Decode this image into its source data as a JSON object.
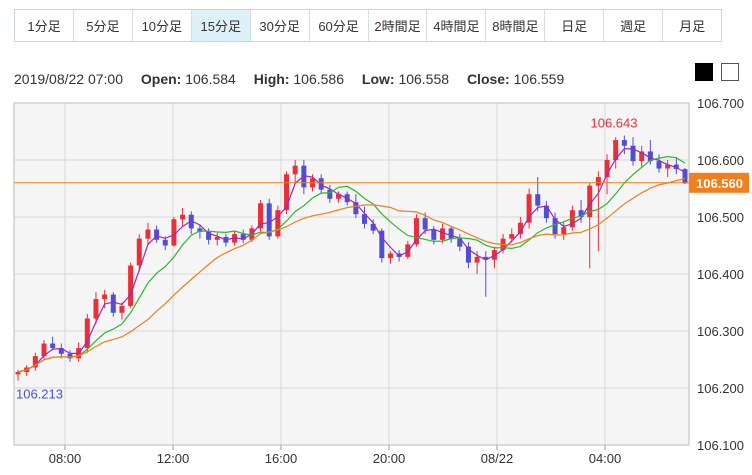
{
  "timeframes": [
    {
      "label": "1分足"
    },
    {
      "label": "5分足"
    },
    {
      "label": "10分足"
    },
    {
      "label": "15分足",
      "active": true
    },
    {
      "label": "30分足"
    },
    {
      "label": "60分足"
    },
    {
      "label": "2時間足"
    },
    {
      "label": "4時間足"
    },
    {
      "label": "8時間足"
    },
    {
      "label": "日足"
    },
    {
      "label": "週足"
    },
    {
      "label": "月足"
    }
  ],
  "ohlc": {
    "datetime": "2019/08/22 07:00",
    "open_label": "Open:",
    "open": "106.584",
    "high_label": "High:",
    "high": "106.586",
    "low_label": "Low:",
    "low": "106.558",
    "close_label": "Close:",
    "close": "106.559"
  },
  "colors": {
    "up": "#e8303a",
    "down": "#4d4fd6",
    "ma_fast": "#9b27c7",
    "ma_mid": "#2eb82e",
    "ma_slow": "#f07f1c",
    "current": "#f07f1c",
    "grid": "#d8d8d8",
    "bg": "#f5f5f5"
  },
  "chart_data": {
    "type": "candlestick",
    "x_ticks": [
      "08:00",
      "12:00",
      "16:00",
      "20:00",
      "08/22",
      "04:00"
    ],
    "y_ticks": [
      "106.700",
      "106.600",
      "106.500",
      "106.400",
      "106.300",
      "106.200",
      "106.100"
    ],
    "ylim": [
      106.1,
      106.7
    ],
    "current_price": "106.560",
    "high_marker": "106.643",
    "low_marker": "106.213",
    "candles": [
      [
        106.224,
        106.232,
        106.213,
        106.228
      ],
      [
        106.228,
        106.24,
        106.221,
        106.236
      ],
      [
        106.236,
        106.262,
        106.23,
        106.256
      ],
      [
        106.256,
        106.284,
        106.25,
        106.278
      ],
      [
        106.278,
        106.29,
        106.266,
        106.27
      ],
      [
        106.27,
        106.278,
        106.252,
        106.26
      ],
      [
        106.26,
        106.266,
        106.246,
        106.252
      ],
      [
        106.252,
        106.28,
        106.246,
        106.27
      ],
      [
        106.27,
        106.33,
        106.262,
        106.322
      ],
      [
        106.322,
        106.368,
        106.312,
        106.356
      ],
      [
        106.356,
        106.372,
        106.34,
        106.364
      ],
      [
        106.364,
        106.368,
        106.325,
        106.332
      ],
      [
        106.332,
        106.35,
        106.32,
        106.344
      ],
      [
        106.344,
        106.42,
        106.34,
        106.415
      ],
      [
        106.415,
        106.47,
        106.405,
        106.462
      ],
      [
        106.462,
        106.49,
        106.452,
        106.478
      ],
      [
        106.478,
        106.485,
        106.455,
        106.46
      ],
      [
        106.46,
        106.466,
        106.442,
        106.45
      ],
      [
        106.45,
        106.5,
        106.448,
        106.496
      ],
      [
        106.496,
        106.516,
        106.484,
        106.504
      ],
      [
        106.504,
        106.51,
        106.47,
        106.48
      ],
      [
        106.48,
        106.486,
        106.462,
        106.474
      ],
      [
        106.474,
        106.48,
        106.452,
        106.46
      ],
      [
        106.46,
        106.472,
        106.45,
        106.465
      ],
      [
        106.465,
        106.47,
        106.448,
        106.455
      ],
      [
        106.455,
        106.475,
        106.45,
        106.47
      ],
      [
        106.47,
        106.478,
        106.454,
        106.46
      ],
      [
        106.46,
        106.485,
        106.456,
        106.48
      ],
      [
        106.48,
        106.53,
        106.474,
        106.524
      ],
      [
        106.524,
        106.532,
        106.46,
        106.466
      ],
      [
        106.466,
        106.52,
        106.462,
        106.512
      ],
      [
        106.512,
        106.58,
        106.505,
        106.575
      ],
      [
        106.575,
        106.6,
        106.56,
        106.59
      ],
      [
        106.59,
        106.6,
        106.54,
        106.552
      ],
      [
        106.552,
        106.575,
        106.545,
        106.568
      ],
      [
        106.568,
        106.575,
        106.54,
        106.548
      ],
      [
        106.548,
        106.556,
        106.525,
        106.532
      ],
      [
        106.532,
        106.545,
        106.525,
        106.54
      ],
      [
        106.54,
        106.545,
        106.52,
        106.526
      ],
      [
        106.526,
        106.54,
        106.498,
        106.505
      ],
      [
        106.505,
        106.518,
        106.48,
        106.488
      ],
      [
        106.488,
        106.496,
        106.47,
        106.476
      ],
      [
        106.476,
        106.48,
        106.42,
        106.428
      ],
      [
        106.428,
        106.44,
        106.418,
        106.436
      ],
      [
        106.436,
        106.442,
        106.422,
        106.43
      ],
      [
        106.43,
        106.458,
        106.426,
        106.452
      ],
      [
        106.452,
        106.505,
        106.448,
        106.498
      ],
      [
        106.498,
        106.508,
        106.47,
        106.478
      ],
      [
        106.478,
        106.484,
        106.452,
        106.46
      ],
      [
        106.46,
        106.488,
        106.454,
        106.48
      ],
      [
        106.48,
        106.484,
        106.455,
        106.462
      ],
      [
        106.462,
        106.47,
        106.44,
        106.448
      ],
      [
        106.448,
        106.456,
        106.41,
        106.42
      ],
      [
        106.42,
        106.44,
        106.4,
        106.43
      ],
      [
        106.43,
        106.44,
        106.36,
        106.425
      ],
      [
        106.425,
        106.448,
        106.41,
        106.442
      ],
      [
        106.442,
        106.47,
        106.436,
        106.462
      ],
      [
        106.462,
        106.48,
        106.455,
        106.47
      ],
      [
        106.47,
        106.5,
        106.462,
        106.49
      ],
      [
        106.49,
        106.55,
        106.48,
        106.54
      ],
      [
        106.54,
        106.57,
        106.51,
        106.52
      ],
      [
        106.52,
        106.528,
        106.49,
        106.498
      ],
      [
        106.498,
        106.508,
        106.462,
        106.47
      ],
      [
        106.47,
        106.49,
        106.46,
        106.482
      ],
      [
        106.482,
        106.52,
        106.476,
        106.512
      ],
      [
        106.512,
        106.53,
        106.49,
        106.5
      ],
      [
        106.5,
        106.56,
        106.41,
        106.555
      ],
      [
        106.555,
        106.58,
        106.44,
        106.57
      ],
      [
        106.57,
        106.61,
        106.54,
        106.6
      ],
      [
        106.6,
        106.64,
        106.585,
        106.635
      ],
      [
        106.635,
        106.643,
        106.61,
        106.625
      ],
      [
        106.625,
        106.64,
        106.59,
        106.598
      ],
      [
        106.598,
        106.625,
        106.588,
        106.615
      ],
      [
        106.615,
        106.635,
        106.592,
        106.598
      ],
      [
        106.598,
        106.61,
        106.578,
        106.585
      ],
      [
        106.585,
        106.6,
        106.57,
        106.592
      ],
      [
        106.592,
        106.605,
        106.575,
        106.584
      ],
      [
        106.584,
        106.586,
        106.558,
        106.559
      ]
    ]
  }
}
